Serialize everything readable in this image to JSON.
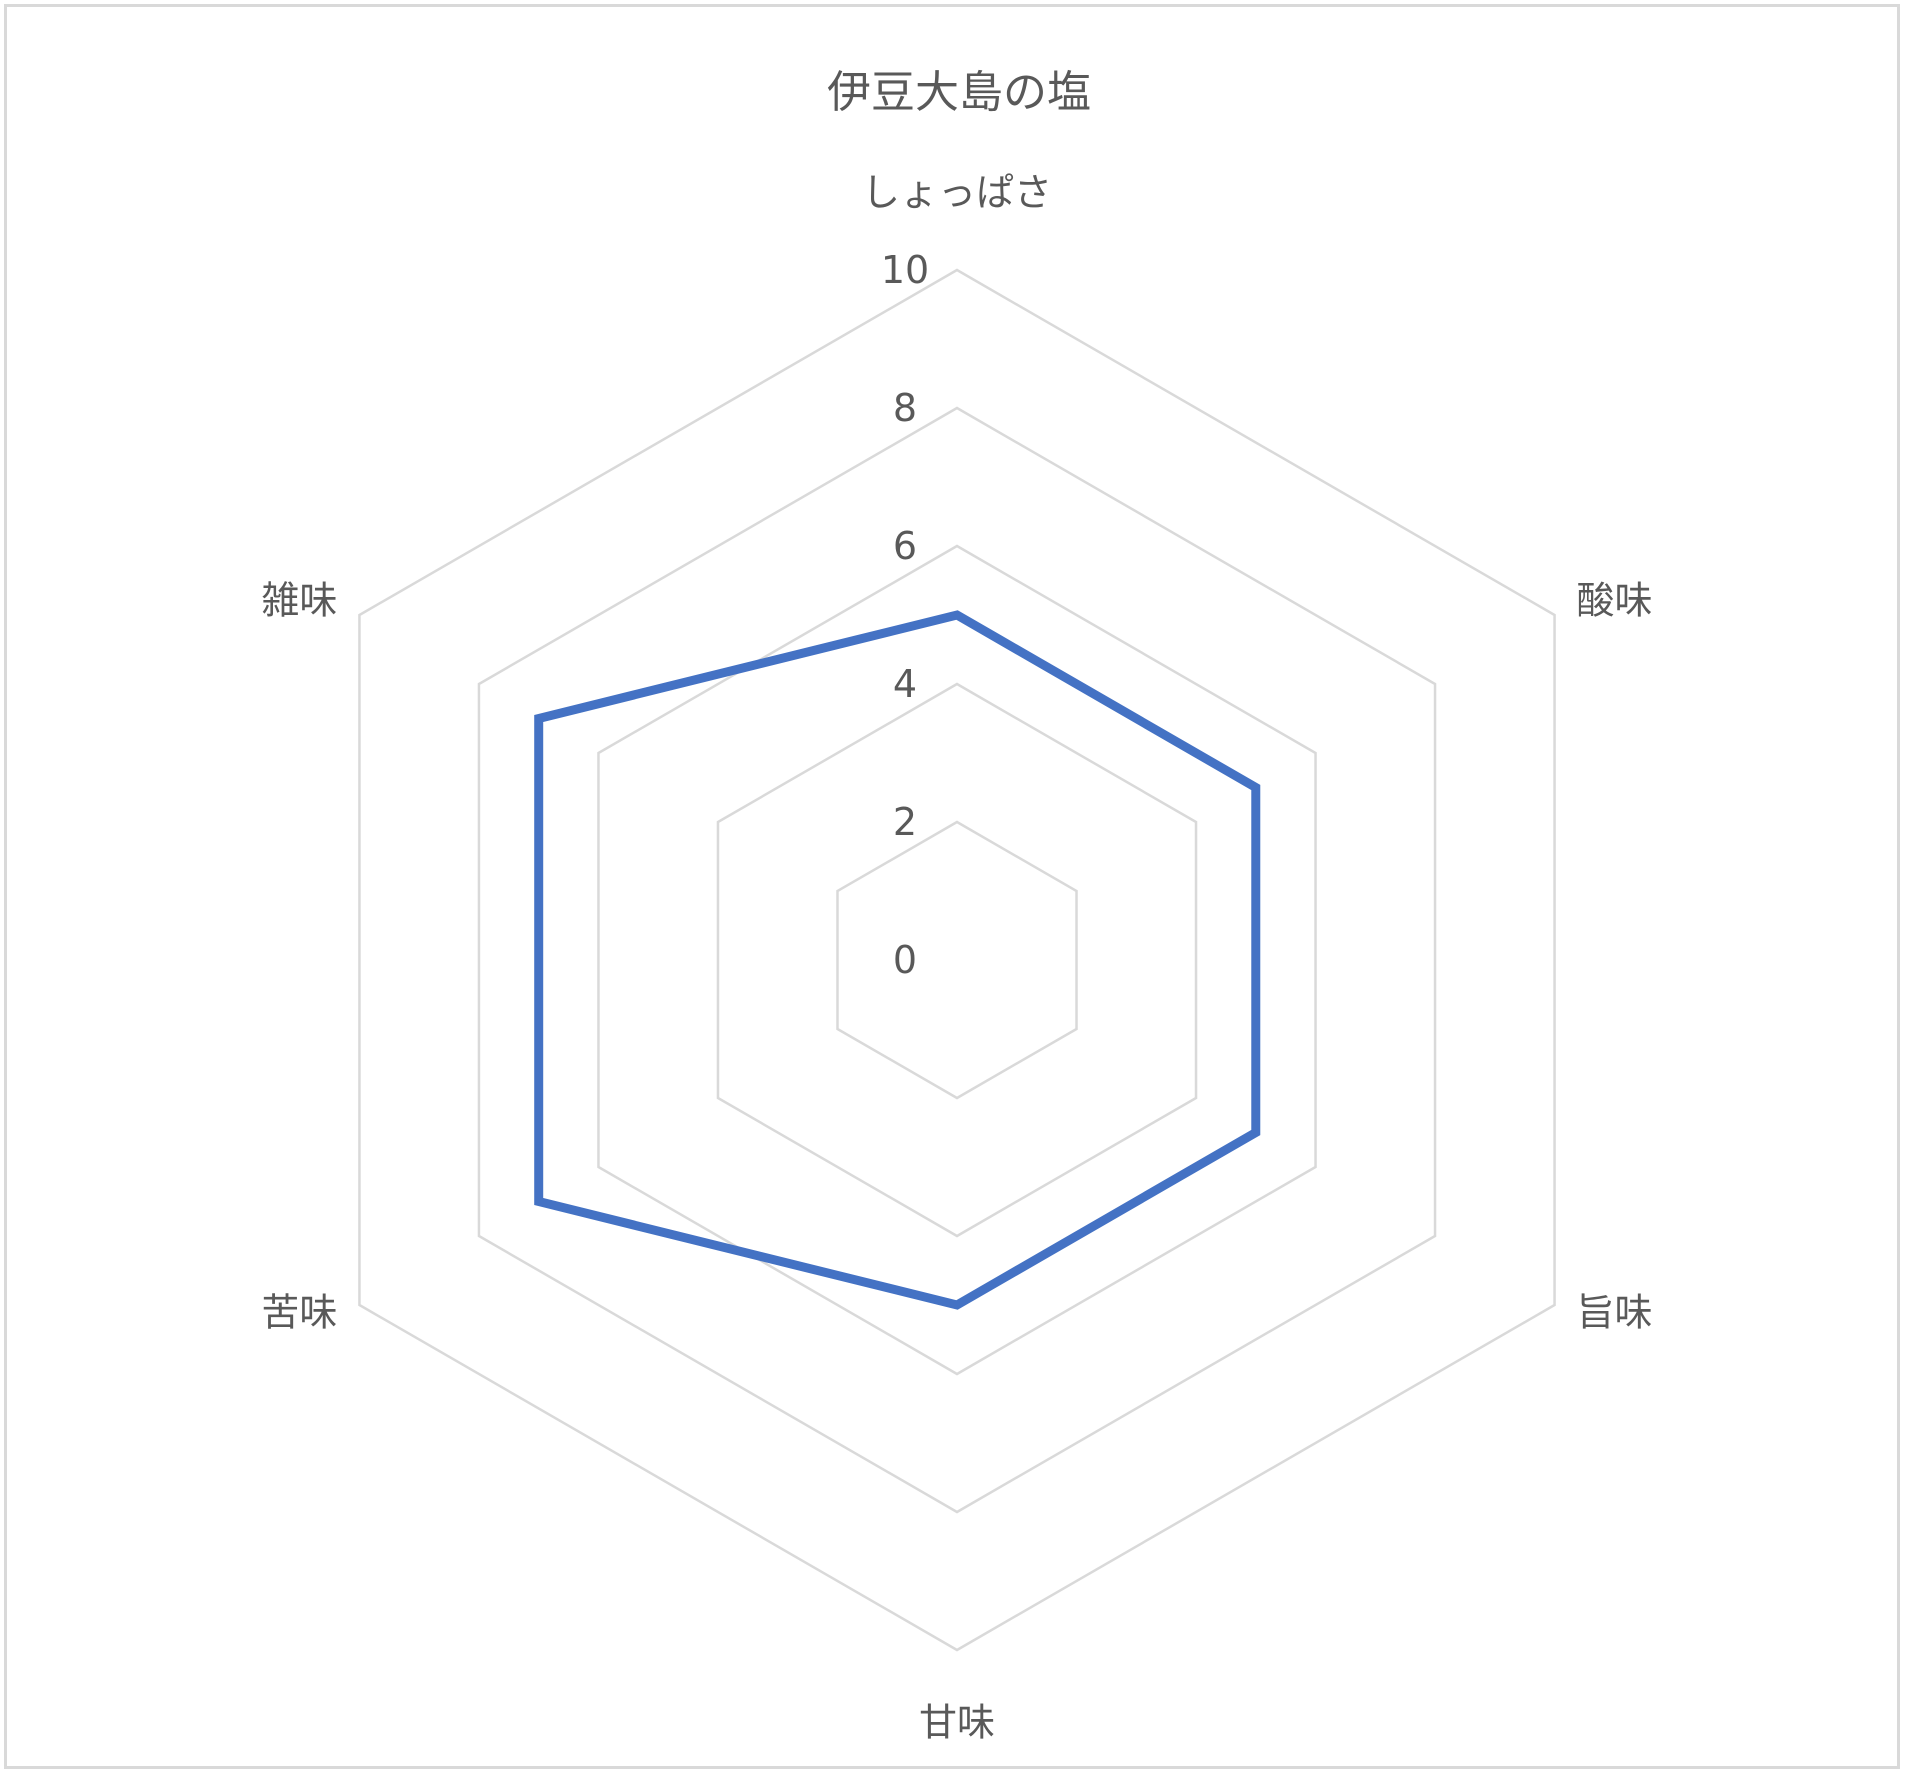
{
  "chart_data": {
    "type": "radar",
    "title": "伊豆大島の塩",
    "categories": [
      "しょっぱさ",
      "酸味",
      "旨味",
      "甘味",
      "苦味",
      "雑味"
    ],
    "series": [
      {
        "values": [
          5,
          5,
          5,
          5,
          7,
          7
        ]
      }
    ],
    "rlim": [
      0,
      10
    ],
    "ticks": [
      "0",
      "2",
      "4",
      "6",
      "8",
      "10"
    ],
    "tick_values": [
      0,
      2,
      4,
      6,
      8,
      10
    ],
    "grid": true,
    "legend": "none",
    "series_color": "#4472c4",
    "grid_color": "#d9d9d9"
  }
}
